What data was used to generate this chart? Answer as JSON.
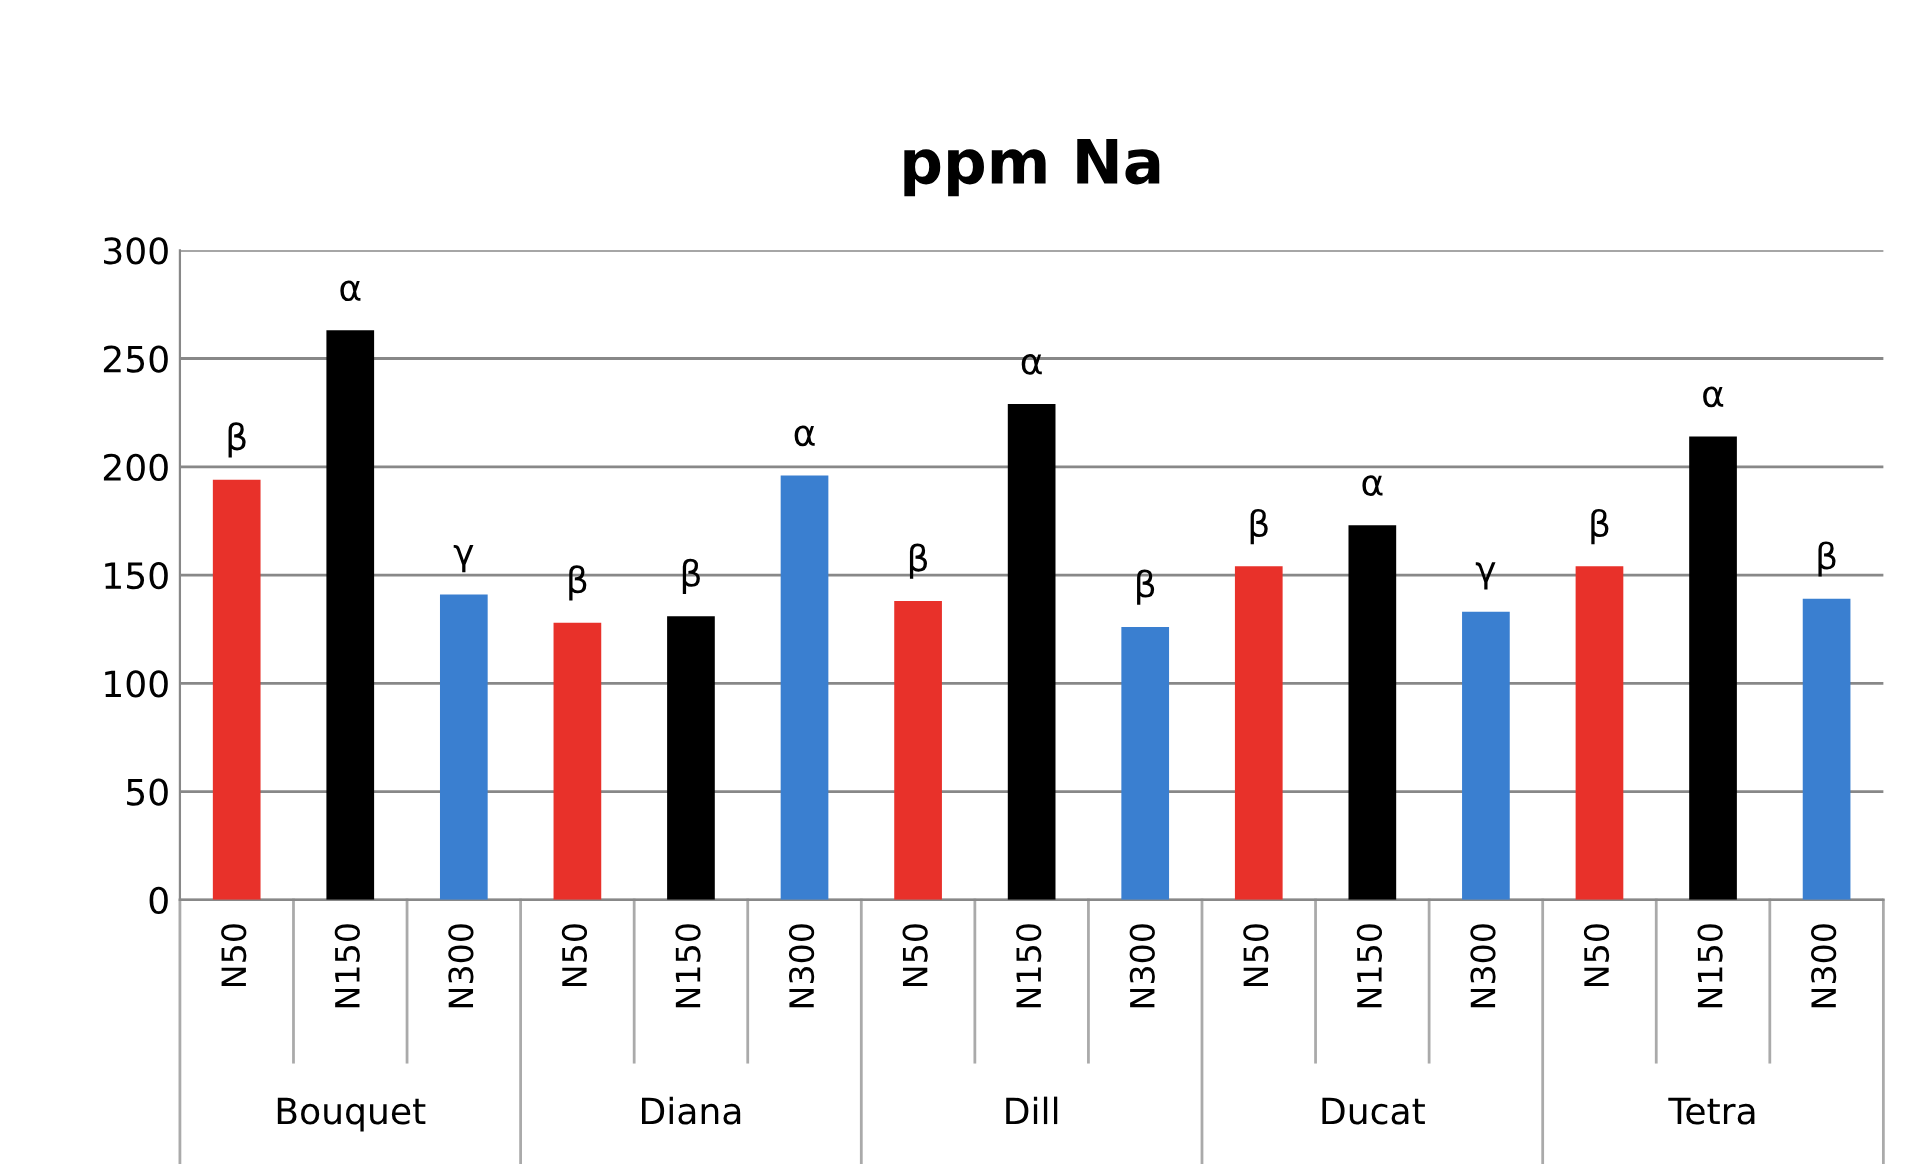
{
  "chart_data": {
    "type": "bar",
    "title": "ppm Na",
    "categories": [
      "N50",
      "N150",
      "N300",
      "N50",
      "N150",
      "N300",
      "N50",
      "N150",
      "N300",
      "N50",
      "N150",
      "N300",
      "N50",
      "N150",
      "N300"
    ],
    "values": [
      194,
      263,
      141,
      128,
      131,
      196,
      138,
      229,
      126,
      154,
      173,
      133,
      154,
      214,
      139
    ],
    "colors": [
      "#e8312a",
      "#000000",
      "#3a7fd0",
      "#e8312a",
      "#000000",
      "#3a7fd0",
      "#e8312a",
      "#000000",
      "#3a7fd0",
      "#e8312a",
      "#000000",
      "#3a7fd0",
      "#e8312a",
      "#000000",
      "#3a7fd0"
    ],
    "value_labels": [
      "β",
      "α",
      "γ",
      "β",
      "β",
      "α",
      "β",
      "α",
      "β",
      "β",
      "α",
      "γ",
      "β",
      "α",
      "β"
    ],
    "annotations": [
      "Bouquet",
      "Diana",
      "Dill",
      "Ducat",
      "Tetra"
    ],
    "ylim": [
      0,
      300
    ],
    "yticks": [
      0,
      50,
      100,
      150,
      200,
      250,
      300
    ],
    "grid": "y"
  }
}
